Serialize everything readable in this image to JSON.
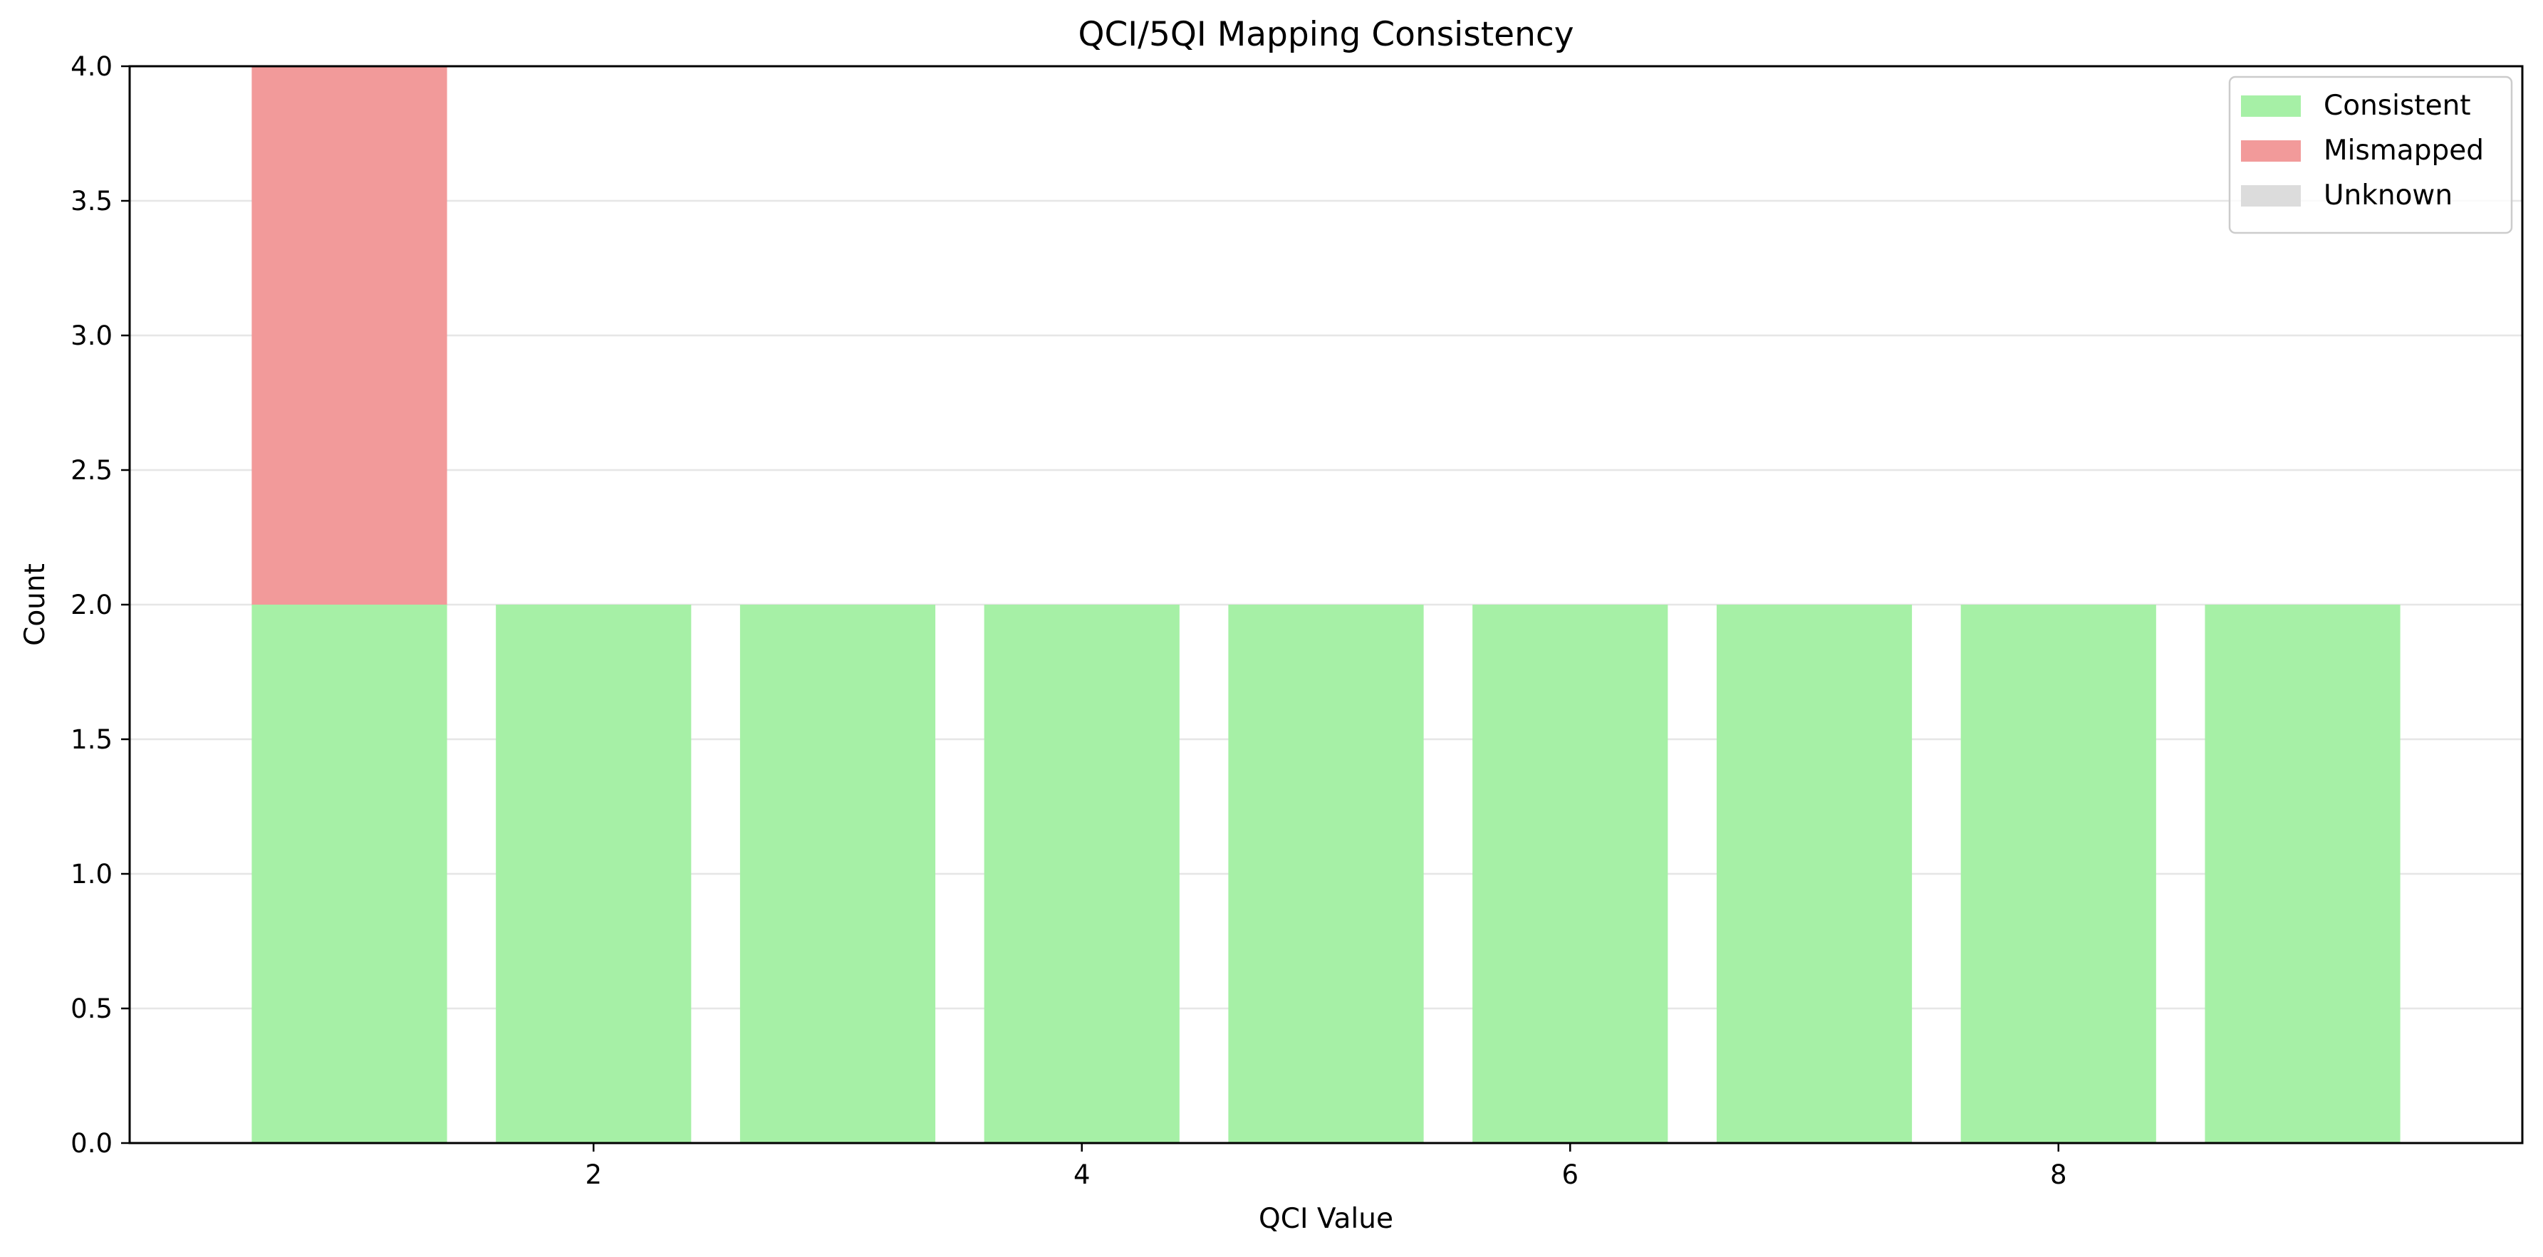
{
  "chart_data": {
    "type": "bar",
    "stacked": true,
    "title": "QCI/5QI Mapping Consistency",
    "xlabel": "QCI Value",
    "ylabel": "Count",
    "x": [
      1,
      2,
      3,
      4,
      5,
      6,
      7,
      8,
      9
    ],
    "xticks": [
      "2",
      "4",
      "6",
      "8"
    ],
    "xtick_values": [
      2,
      4,
      6,
      8
    ],
    "yticks": [
      "0.0",
      "0.5",
      "1.0",
      "1.5",
      "2.0",
      "2.5",
      "3.0",
      "3.5",
      "4.0"
    ],
    "ylim": [
      0,
      4
    ],
    "xlim": [
      0.1,
      9.9
    ],
    "grid": "y",
    "legend_position": "top-right",
    "series": [
      {
        "name": "Consistent",
        "color": "#a6f0a6",
        "values": [
          2,
          2,
          2,
          2,
          2,
          2,
          2,
          2,
          2
        ]
      },
      {
        "name": "Mismapped",
        "color": "#f29a9a",
        "values": [
          2,
          0,
          0,
          0,
          0,
          0,
          0,
          0,
          0
        ]
      },
      {
        "name": "Unknown",
        "color": "#dcdcdc",
        "values": [
          0,
          0,
          0,
          0,
          0,
          0,
          0,
          0,
          0
        ]
      }
    ]
  }
}
